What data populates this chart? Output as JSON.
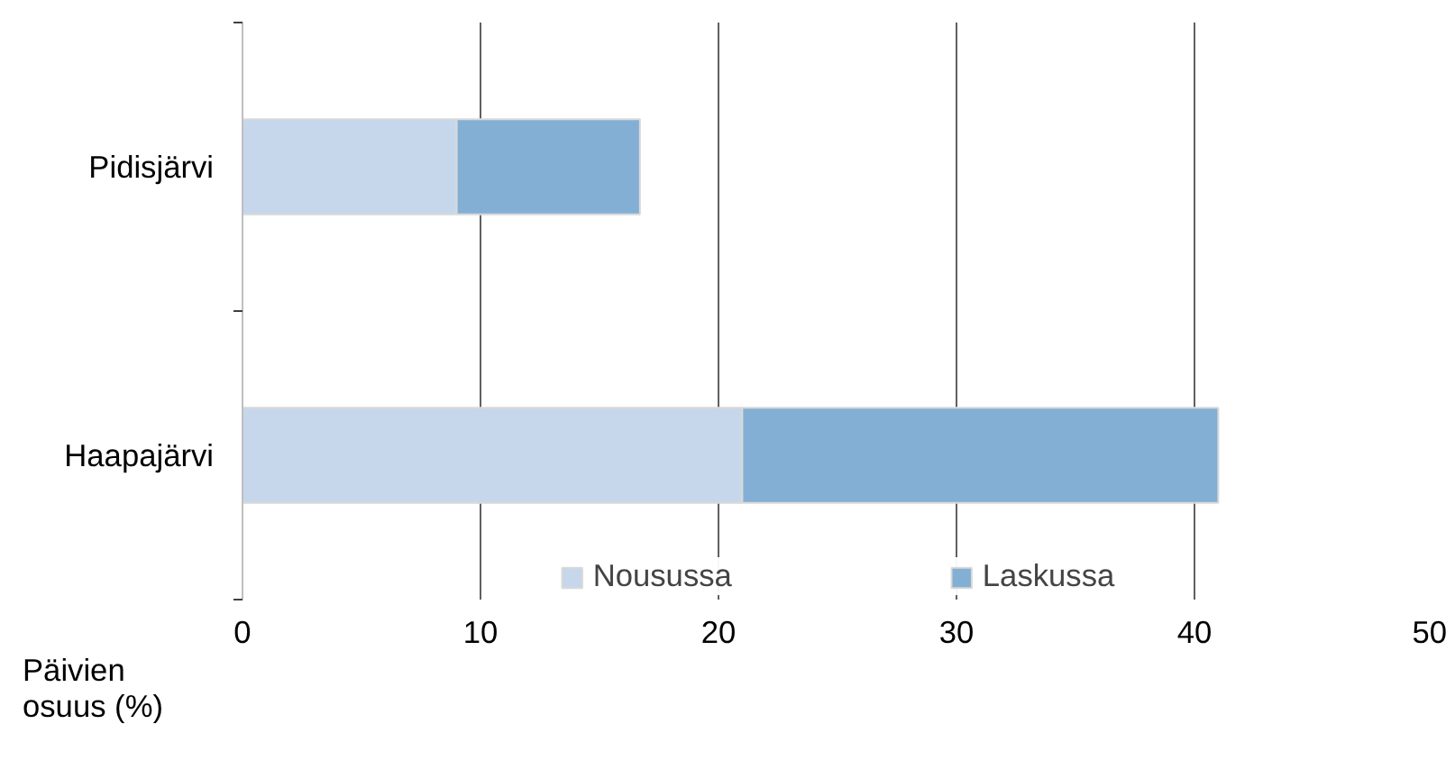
{
  "chart_data": {
    "type": "bar",
    "orientation": "horizontal",
    "stacked": true,
    "categories": [
      "Pidisjärvi",
      "Haapajärvi"
    ],
    "series": [
      {
        "name": "Nousussa",
        "color": "#c6d6eb",
        "values": [
          9,
          21
        ]
      },
      {
        "name": "Laskussa",
        "color": "#84afd4",
        "values": [
          7.7,
          20
        ]
      }
    ],
    "xlabel": "Päivien osuus (%)",
    "xlim": [
      0,
      50
    ],
    "xticks": [
      0,
      10,
      20,
      30,
      40,
      50
    ],
    "grid": "x",
    "legend": "bottom"
  }
}
